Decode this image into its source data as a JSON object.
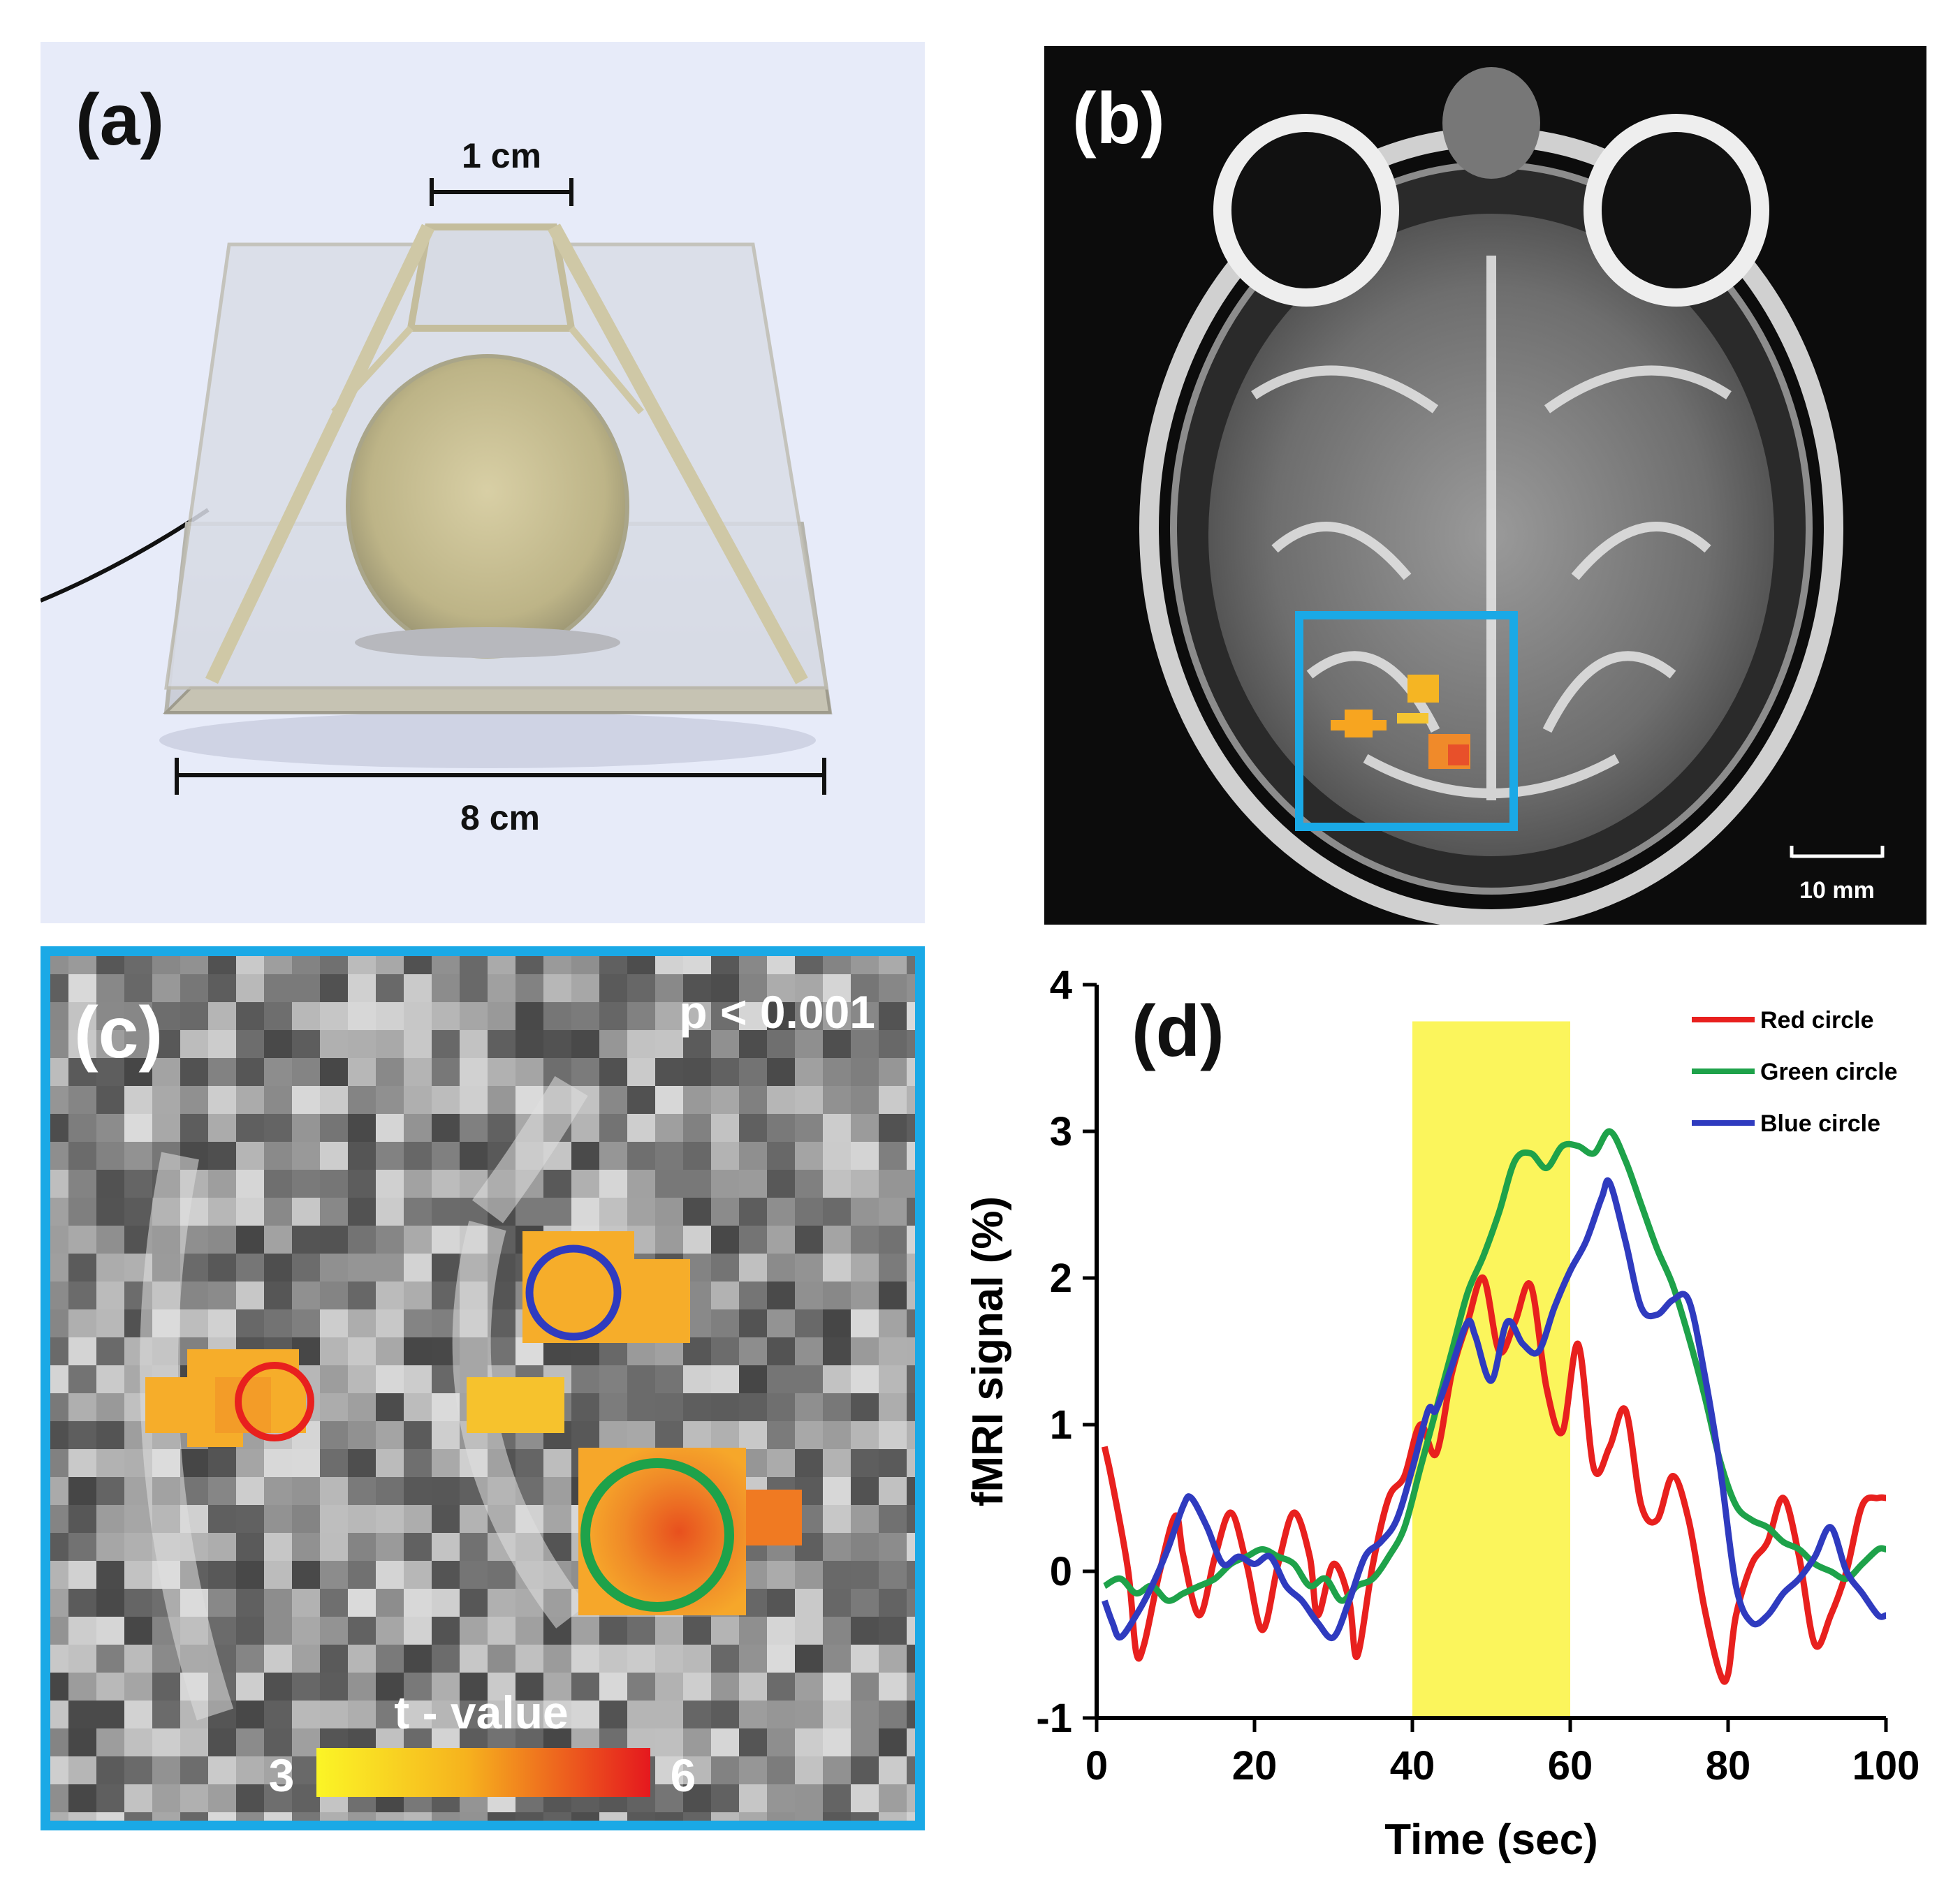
{
  "panels": {
    "a": {
      "label": "(a)",
      "small_dim": "1 cm",
      "large_dim": "8 cm"
    },
    "b": {
      "label": "(b)",
      "scale_bar": "10 mm",
      "roi_color": "#1aa9e6"
    },
    "c": {
      "label": "(c)",
      "threshold": "p < 0.001",
      "colorbar_title": "t - value",
      "colorbar_min": "3",
      "colorbar_max": "6",
      "frame_color": "#1aa9e6",
      "circle_colors": [
        "#e8201e",
        "#1ea24a",
        "#2f3bbf"
      ]
    },
    "d": {
      "label": "(d)"
    }
  },
  "chart_data": {
    "type": "line",
    "title": "",
    "xlabel": "Time (sec)",
    "ylabel": "fMRI signal (%)",
    "xlim": [
      0,
      100
    ],
    "ylim": [
      -1,
      4
    ],
    "xticks": [
      "0",
      "20",
      "40",
      "60",
      "80",
      "100"
    ],
    "yticks": [
      "-1",
      "0",
      "1",
      "2",
      "3",
      "4"
    ],
    "stimulus_block": {
      "x_start": 40,
      "x_end": 60,
      "color": "#fbf55c"
    },
    "legend_position": "top-right",
    "series": [
      {
        "name": "Red circle",
        "color": "#e8201e",
        "x": [
          1,
          2,
          4,
          5,
          6,
          8,
          10,
          11,
          13,
          15,
          17,
          19,
          21,
          23,
          25,
          27,
          28,
          30,
          32,
          33,
          35,
          37,
          39,
          41,
          43,
          45,
          47,
          49,
          51,
          53,
          55,
          57,
          59,
          61,
          63,
          65,
          67,
          69,
          71,
          73,
          75,
          77,
          79,
          80,
          81,
          83,
          85,
          87,
          89,
          91,
          93,
          95,
          97,
          99,
          100
        ],
        "y": [
          0.85,
          0.6,
          0.0,
          -0.55,
          -0.5,
          0.0,
          0.38,
          0.1,
          -0.3,
          0.1,
          0.4,
          0.05,
          -0.4,
          0.05,
          0.4,
          0.1,
          -0.3,
          0.05,
          -0.2,
          -0.58,
          0.05,
          0.5,
          0.65,
          1.0,
          0.8,
          1.35,
          1.7,
          2.0,
          1.5,
          1.7,
          1.95,
          1.25,
          0.95,
          1.55,
          0.7,
          0.85,
          1.1,
          0.45,
          0.35,
          0.65,
          0.35,
          -0.25,
          -0.7,
          -0.7,
          -0.3,
          0.05,
          0.2,
          0.5,
          0.1,
          -0.5,
          -0.3,
          0.0,
          0.45,
          0.5,
          0.5
        ]
      },
      {
        "name": "Green circle",
        "color": "#1ea24a",
        "x": [
          1,
          3,
          5,
          7,
          9,
          11,
          13,
          15,
          17,
          19,
          21,
          23,
          25,
          27,
          29,
          31,
          33,
          35,
          37,
          39,
          41,
          43,
          45,
          47,
          49,
          51,
          53,
          55,
          57,
          59,
          61,
          63,
          65,
          67,
          69,
          71,
          73,
          75,
          77,
          79,
          81,
          83,
          85,
          87,
          89,
          91,
          93,
          95,
          97,
          99,
          100
        ],
        "y": [
          -0.1,
          -0.05,
          -0.15,
          -0.1,
          -0.2,
          -0.15,
          -0.1,
          -0.05,
          0.05,
          0.1,
          0.15,
          0.1,
          0.05,
          -0.1,
          -0.05,
          -0.2,
          -0.1,
          -0.05,
          0.1,
          0.3,
          0.7,
          1.1,
          1.5,
          1.9,
          2.15,
          2.45,
          2.8,
          2.85,
          2.75,
          2.9,
          2.9,
          2.85,
          3.0,
          2.8,
          2.5,
          2.2,
          1.95,
          1.6,
          1.2,
          0.75,
          0.45,
          0.35,
          0.3,
          0.2,
          0.15,
          0.05,
          0.0,
          -0.05,
          0.05,
          0.15,
          0.15
        ]
      },
      {
        "name": "Blue circle",
        "color": "#2f3bbf",
        "x": [
          1,
          2,
          3,
          5,
          7,
          9,
          11,
          12,
          14,
          16,
          18,
          20,
          22,
          24,
          26,
          28,
          30,
          32,
          34,
          36,
          38,
          40,
          42,
          43,
          45,
          47,
          48,
          50,
          52,
          54,
          56,
          58,
          60,
          62,
          64,
          65,
          67,
          69,
          71,
          73,
          75,
          77,
          79,
          81,
          83,
          85,
          87,
          89,
          91,
          93,
          95,
          97,
          99,
          100
        ],
        "y": [
          -0.2,
          -0.35,
          -0.45,
          -0.3,
          -0.1,
          0.15,
          0.45,
          0.5,
          0.3,
          0.05,
          0.1,
          0.05,
          0.1,
          -0.1,
          -0.2,
          -0.35,
          -0.45,
          -0.2,
          0.1,
          0.2,
          0.35,
          0.7,
          1.1,
          1.1,
          1.4,
          1.7,
          1.6,
          1.3,
          1.7,
          1.55,
          1.5,
          1.8,
          2.05,
          2.25,
          2.55,
          2.65,
          2.25,
          1.8,
          1.75,
          1.85,
          1.85,
          1.35,
          0.7,
          -0.1,
          -0.35,
          -0.3,
          -0.15,
          -0.05,
          0.1,
          0.3,
          0.0,
          -0.15,
          -0.3,
          -0.3
        ]
      }
    ]
  }
}
